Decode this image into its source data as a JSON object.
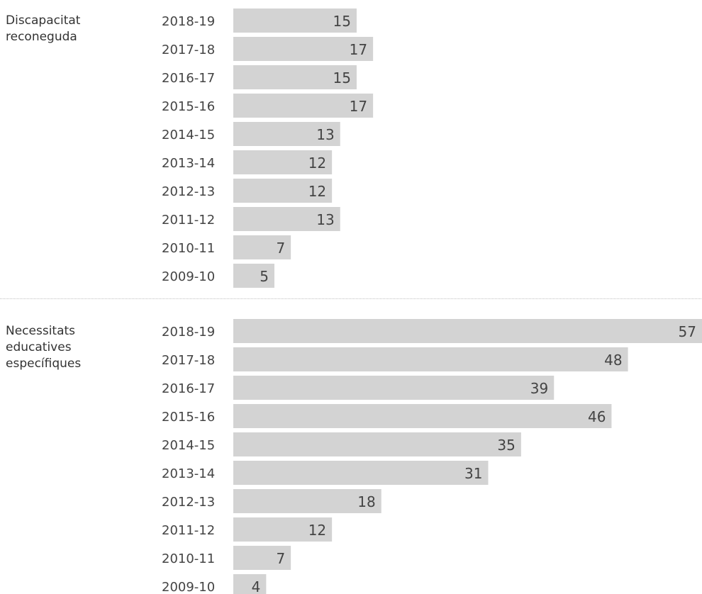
{
  "chart_data": [
    {
      "type": "bar",
      "orientation": "horizontal",
      "group_label": [
        "Discapacitat",
        "reconeguda"
      ],
      "categories": [
        "2018-19",
        "2017-18",
        "2016-17",
        "2015-16",
        "2014-15",
        "2013-14",
        "2012-13",
        "2011-12",
        "2010-11",
        "2009-10"
      ],
      "values": [
        15,
        17,
        15,
        17,
        13,
        12,
        12,
        13,
        7,
        5
      ],
      "bar_color": "#d3d3d3",
      "xlim": [
        0,
        57
      ]
    },
    {
      "type": "bar",
      "orientation": "horizontal",
      "group_label": [
        "Necessitats",
        "educatives",
        "específiques"
      ],
      "categories": [
        "2018-19",
        "2017-18",
        "2016-17",
        "2015-16",
        "2014-15",
        "2013-14",
        "2012-13",
        "2011-12",
        "2010-11",
        "2009-10"
      ],
      "values": [
        57,
        48,
        39,
        46,
        35,
        31,
        18,
        12,
        7,
        4
      ],
      "bar_color": "#d3d3d3",
      "xlim": [
        0,
        57
      ]
    }
  ]
}
